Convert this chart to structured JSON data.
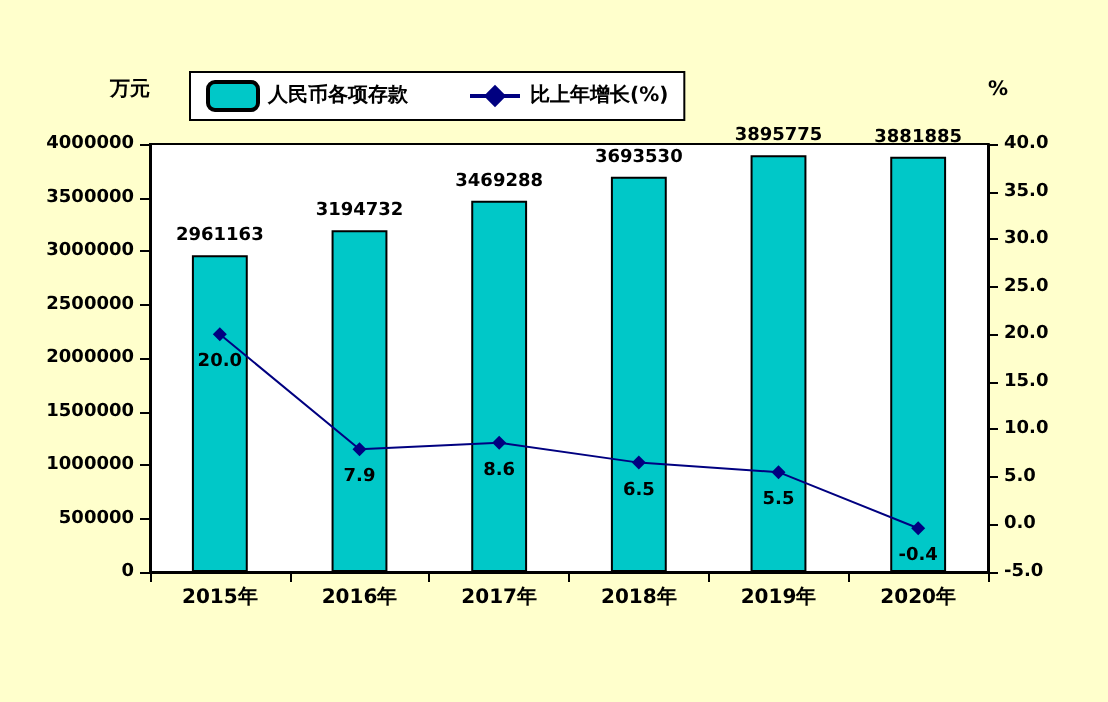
{
  "chart_data": {
    "type": "bar",
    "categories": [
      "2015年",
      "2016年",
      "2017年",
      "2018年",
      "2019年",
      "2020年"
    ],
    "ylabel": "万元",
    "y2label": "%",
    "series": [
      {
        "name": "人民币各项存款",
        "color": "#00c8c8",
        "values": [
          2961163,
          3194732,
          3469288,
          3693530,
          3895775,
          3881885
        ],
        "value_labels": [
          "2961163",
          "3194732",
          "3469288",
          "3693530",
          "3895775",
          "3881885"
        ]
      },
      {
        "name": "比上年增长(%)",
        "type": "line",
        "axis": "y2",
        "color": "#000080",
        "marker": "diamond",
        "values": [
          20.0,
          7.9,
          8.6,
          6.5,
          5.5,
          -0.4
        ],
        "value_labels": [
          "20.0",
          "7.9",
          "8.6",
          "6.5",
          "5.5",
          "-0.4"
        ]
      }
    ],
    "ylim": [
      0,
      4000000
    ],
    "yticks": [
      0,
      500000,
      1000000,
      1500000,
      2000000,
      2500000,
      3000000,
      3500000,
      4000000
    ],
    "y2lim": [
      -5,
      40
    ],
    "y2ticks": [
      {
        "value": -5,
        "label": "-5.0"
      },
      {
        "value": 0,
        "label": "0.0"
      },
      {
        "value": 5,
        "label": "5.0"
      },
      {
        "value": 10,
        "label": "10.0"
      },
      {
        "value": 15,
        "label": "15.0"
      },
      {
        "value": 20,
        "label": "20.0"
      },
      {
        "value": 25,
        "label": "25.0"
      },
      {
        "value": 30,
        "label": "30.0"
      },
      {
        "value": 35,
        "label": "35.0"
      },
      {
        "value": 40,
        "label": "40.0"
      }
    ],
    "legend": "top",
    "grid": false
  }
}
